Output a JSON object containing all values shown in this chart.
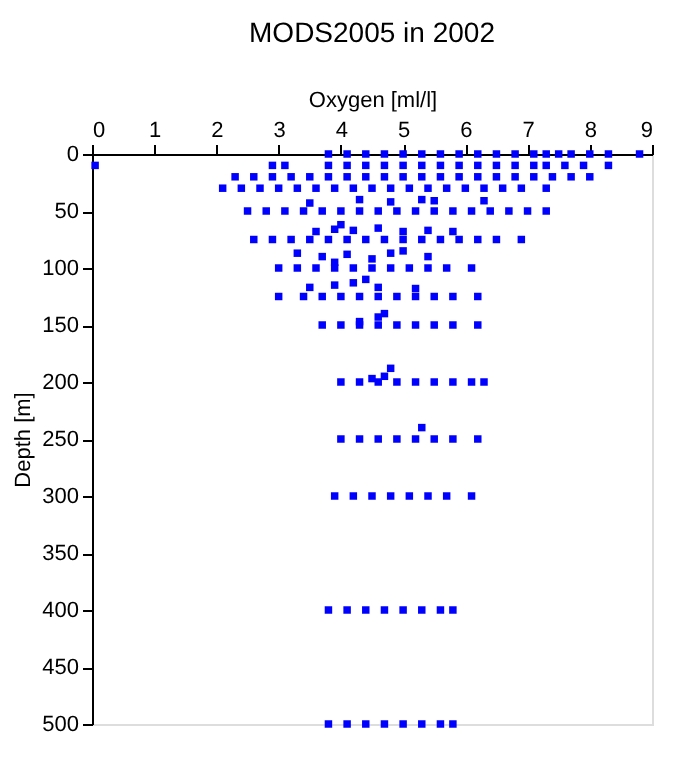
{
  "chart_data": {
    "type": "scatter",
    "title": "MODS2005 in 2002",
    "xlabel": "Oxygen [ml/l]",
    "ylabel": "Depth [m]",
    "xlim": [
      0,
      9
    ],
    "xticks": [
      0,
      1,
      2,
      3,
      4,
      5,
      6,
      7,
      8,
      9
    ],
    "ylim": [
      500,
      0
    ],
    "yticks": [
      0,
      50,
      100,
      150,
      200,
      250,
      300,
      350,
      400,
      450,
      500
    ],
    "grid": false,
    "marker": "square",
    "series": [
      {
        "color": "#0000ff",
        "x": [
          3.8,
          4.1,
          4.4,
          4.7,
          5.0,
          5.3,
          5.6,
          5.9,
          6.2,
          6.5,
          6.8,
          7.1,
          7.3,
          7.5,
          7.7,
          8.0,
          8.3,
          8.8,
          0.05,
          2.9,
          3.1,
          3.8,
          4.1,
          4.4,
          4.7,
          5.0,
          5.3,
          5.6,
          5.9,
          6.2,
          6.5,
          6.8,
          7.1,
          7.3,
          7.6,
          7.9,
          8.3,
          2.3,
          2.6,
          2.9,
          3.2,
          3.5,
          3.8,
          4.1,
          4.4,
          4.7,
          5.0,
          5.3,
          5.6,
          5.9,
          6.2,
          6.5,
          6.8,
          7.1,
          7.4,
          7.7,
          8.0,
          2.1,
          2.4,
          2.7,
          3.0,
          3.3,
          3.6,
          3.9,
          4.2,
          4.5,
          4.8,
          5.1,
          5.4,
          5.7,
          6.0,
          6.3,
          6.6,
          6.9,
          7.3,
          3.5,
          4.3,
          4.8,
          5.3,
          5.5,
          6.3,
          2.5,
          2.8,
          3.1,
          3.4,
          3.7,
          4.0,
          4.3,
          4.6,
          4.9,
          5.2,
          5.5,
          5.8,
          6.1,
          6.4,
          6.7,
          7.0,
          7.3,
          3.6,
          3.9,
          4.2,
          4.6,
          5.0,
          5.4,
          5.8,
          4.0,
          2.6,
          2.9,
          3.2,
          3.5,
          3.8,
          4.1,
          4.4,
          4.7,
          5.0,
          5.3,
          5.6,
          5.9,
          6.2,
          6.5,
          6.9,
          3.3,
          3.7,
          4.1,
          4.5,
          4.8,
          5.0,
          5.4,
          3.9,
          3.0,
          3.3,
          3.6,
          3.9,
          4.2,
          4.5,
          4.8,
          5.1,
          5.4,
          5.7,
          6.1,
          3.5,
          3.9,
          4.2,
          4.4,
          4.6,
          5.2,
          3.0,
          3.4,
          3.7,
          4.0,
          4.3,
          4.6,
          4.9,
          5.2,
          5.5,
          5.8,
          6.2,
          4.3,
          4.6,
          4.7,
          3.7,
          4.0,
          4.3,
          4.6,
          4.9,
          5.2,
          5.5,
          5.8,
          6.2,
          4.5,
          4.7,
          4.8,
          4.0,
          4.3,
          4.6,
          4.9,
          5.2,
          5.5,
          5.8,
          6.1,
          6.3,
          5.3,
          4.0,
          4.3,
          4.6,
          4.9,
          5.2,
          5.5,
          5.8,
          6.2,
          3.9,
          4.2,
          4.5,
          4.8,
          5.1,
          5.4,
          5.7,
          6.1,
          3.8,
          4.1,
          4.4,
          4.7,
          5.0,
          5.3,
          5.6,
          5.8,
          3.8,
          4.1,
          4.4,
          4.7,
          5.0,
          5.3,
          5.6,
          5.8
        ],
        "values": [
          0,
          0,
          0,
          0,
          0,
          0,
          0,
          0,
          0,
          0,
          0,
          0,
          0,
          0,
          0,
          0,
          0,
          0,
          10,
          10,
          10,
          10,
          10,
          10,
          10,
          10,
          10,
          10,
          10,
          10,
          10,
          10,
          10,
          10,
          10,
          10,
          10,
          20,
          20,
          20,
          20,
          20,
          20,
          20,
          20,
          20,
          20,
          20,
          20,
          20,
          20,
          20,
          20,
          20,
          20,
          20,
          20,
          30,
          30,
          30,
          30,
          30,
          30,
          30,
          30,
          30,
          30,
          30,
          30,
          30,
          30,
          30,
          30,
          30,
          30,
          43,
          40,
          42,
          40,
          41,
          41,
          50,
          50,
          50,
          50,
          50,
          50,
          50,
          50,
          50,
          50,
          50,
          50,
          50,
          50,
          50,
          50,
          50,
          68,
          66,
          67,
          65,
          68,
          67,
          68,
          62,
          75,
          75,
          75,
          75,
          75,
          75,
          75,
          75,
          75,
          75,
          75,
          75,
          75,
          75,
          75,
          87,
          90,
          88,
          92,
          87,
          85,
          90,
          95,
          100,
          100,
          100,
          100,
          100,
          100,
          100,
          100,
          100,
          100,
          100,
          117,
          115,
          113,
          110,
          117,
          118,
          125,
          125,
          125,
          125,
          125,
          125,
          125,
          125,
          125,
          125,
          125,
          147,
          143,
          140,
          150,
          150,
          150,
          150,
          150,
          150,
          150,
          150,
          150,
          197,
          195,
          188,
          200,
          200,
          200,
          200,
          200,
          200,
          200,
          200,
          200,
          240,
          250,
          250,
          250,
          250,
          250,
          250,
          250,
          250,
          300,
          300,
          300,
          300,
          300,
          300,
          300,
          300,
          400,
          400,
          400,
          400,
          400,
          400,
          400,
          400,
          500,
          500,
          500,
          500,
          500,
          500,
          500,
          500
        ]
      }
    ]
  }
}
